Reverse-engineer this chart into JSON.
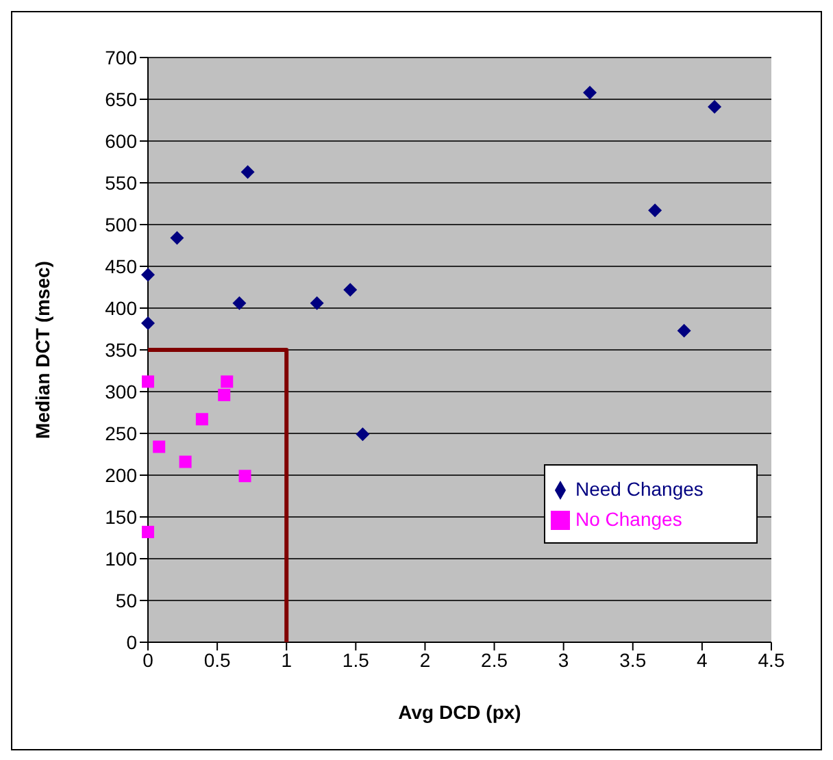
{
  "chart_data": {
    "type": "scatter",
    "xlabel": "Avg DCD (px)",
    "ylabel": "Median DCT (msec)",
    "xlim": [
      0,
      4.5
    ],
    "xticks": [
      0,
      0.5,
      1,
      1.5,
      2,
      2.5,
      3,
      3.5,
      4,
      4.5
    ],
    "ylim": [
      0,
      700
    ],
    "yticks": [
      0,
      50,
      100,
      150,
      200,
      250,
      300,
      350,
      400,
      450,
      500,
      550,
      600,
      650,
      700
    ],
    "grid": "y",
    "legend": "right",
    "series": [
      {
        "name": "Need Changes",
        "color": "#000080",
        "marker": "diamond",
        "x": [
          0,
          0,
          0.21,
          0.72,
          0.66,
          1.22,
          1.46,
          1.55,
          3.19,
          4.09,
          3.66,
          3.87
        ],
        "values": [
          440,
          382,
          484,
          563,
          406,
          406,
          422,
          249,
          658,
          641,
          517,
          373
        ]
      },
      {
        "name": "No Changes",
        "color": "#ff00ff",
        "marker": "square",
        "x": [
          0,
          0.57,
          0.55,
          0.39,
          0.08,
          0.27,
          0.7,
          0
        ],
        "values": [
          312,
          312,
          296,
          267,
          234,
          216,
          199,
          132
        ]
      },
      {
        "type": "line",
        "color": "#800000",
        "marker": "none",
        "x": [
          0,
          1,
          1
        ],
        "values": [
          350,
          350,
          0
        ]
      }
    ]
  }
}
